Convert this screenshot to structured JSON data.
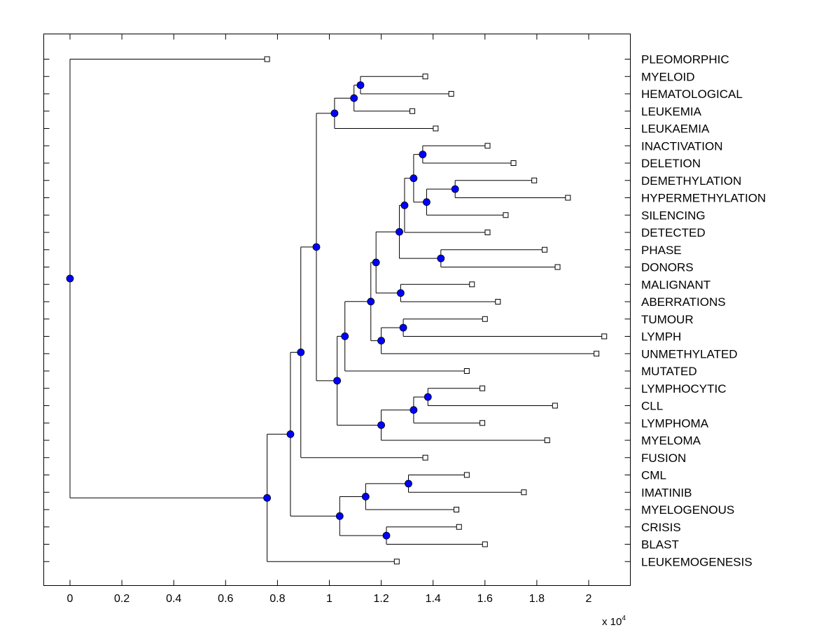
{
  "chart_data": {
    "type": "dendrogram",
    "orientation": "horizontal",
    "xlim": [
      -0.1,
      2.15
    ],
    "xticks": [
      0,
      0.2,
      0.4,
      0.6,
      0.8,
      1,
      1.2,
      1.4,
      1.6,
      1.8,
      2
    ],
    "x_multiplier_base": "x 10",
    "x_multiplier_exponent": "4",
    "colors": {
      "node_fill": "#0000ff",
      "line": "#000000",
      "leaf_fill": "#ffffff"
    },
    "leaves": [
      {
        "label": "PLEOMORPHIC",
        "x": 0.76
      },
      {
        "label": "MYELOID",
        "x": 1.37
      },
      {
        "label": "HEMATOLOGICAL",
        "x": 1.47
      },
      {
        "label": "LEUKEMIA",
        "x": 1.32
      },
      {
        "label": "LEUKAEMIA",
        "x": 1.41
      },
      {
        "label": "INACTIVATION",
        "x": 1.61
      },
      {
        "label": "DELETION",
        "x": 1.71
      },
      {
        "label": "DEMETHYLATION",
        "x": 1.79
      },
      {
        "label": "HYPERMETHYLATION",
        "x": 1.92
      },
      {
        "label": "SILENCING",
        "x": 1.68
      },
      {
        "label": "DETECTED",
        "x": 1.61
      },
      {
        "label": "PHASE",
        "x": 1.83
      },
      {
        "label": "DONORS",
        "x": 1.88
      },
      {
        "label": "MALIGNANT",
        "x": 1.55
      },
      {
        "label": "ABERRATIONS",
        "x": 1.65
      },
      {
        "label": "TUMOUR",
        "x": 1.6
      },
      {
        "label": "LYMPH",
        "x": 2.06
      },
      {
        "label": "UNMETHYLATED",
        "x": 2.03
      },
      {
        "label": "MUTATED",
        "x": 1.53
      },
      {
        "label": "LYMPHOCYTIC",
        "x": 1.59
      },
      {
        "label": "CLL",
        "x": 1.87
      },
      {
        "label": "LYMPHOMA",
        "x": 1.59
      },
      {
        "label": "MYELOMA",
        "x": 1.84
      },
      {
        "label": "FUSION",
        "x": 1.37
      },
      {
        "label": "CML",
        "x": 1.53
      },
      {
        "label": "IMATINIB",
        "x": 1.75
      },
      {
        "label": "MYELOGENOUS",
        "x": 1.49
      },
      {
        "label": "CRISIS",
        "x": 1.5
      },
      {
        "label": "BLAST",
        "x": 1.6
      },
      {
        "label": "LEUKEMOGENESIS",
        "x": 1.26
      }
    ],
    "merges": [
      {
        "id": "n1",
        "x": 1.12,
        "children": [
          "MYELOID",
          "HEMATOLOGICAL"
        ]
      },
      {
        "id": "n2",
        "x": 1.095,
        "children": [
          "n1",
          "LEUKEMIA"
        ]
      },
      {
        "id": "n3",
        "x": 1.02,
        "children": [
          "n2",
          "LEUKAEMIA"
        ]
      },
      {
        "id": "n4",
        "x": 1.36,
        "children": [
          "INACTIVATION",
          "DELETION"
        ]
      },
      {
        "id": "n5",
        "x": 1.485,
        "children": [
          "DEMETHYLATION",
          "HYPERMETHYLATION"
        ]
      },
      {
        "id": "n6",
        "x": 1.375,
        "children": [
          "n5",
          "SILENCING"
        ]
      },
      {
        "id": "n7",
        "x": 1.325,
        "children": [
          "n4",
          "n6"
        ]
      },
      {
        "id": "n8",
        "x": 1.29,
        "children": [
          "n7",
          "DETECTED"
        ]
      },
      {
        "id": "n9",
        "x": 1.43,
        "children": [
          "PHASE",
          "DONORS"
        ]
      },
      {
        "id": "n10",
        "x": 1.27,
        "children": [
          "n8",
          "n9"
        ]
      },
      {
        "id": "n11",
        "x": 1.275,
        "children": [
          "MALIGNANT",
          "ABERRATIONS"
        ]
      },
      {
        "id": "n12",
        "x": 1.18,
        "children": [
          "n10",
          "n11"
        ]
      },
      {
        "id": "n13",
        "x": 1.285,
        "children": [
          "TUMOUR",
          "LYMPH"
        ]
      },
      {
        "id": "n14",
        "x": 1.2,
        "children": [
          "n13",
          "UNMETHYLATED"
        ]
      },
      {
        "id": "n15",
        "x": 1.16,
        "children": [
          "n12",
          "n14"
        ]
      },
      {
        "id": "n16",
        "x": 1.06,
        "children": [
          "n15",
          "MUTATED"
        ]
      },
      {
        "id": "n17",
        "x": 1.38,
        "children": [
          "LYMPHOCYTIC",
          "CLL"
        ]
      },
      {
        "id": "n18",
        "x": 1.325,
        "children": [
          "n17",
          "LYMPHOMA"
        ]
      },
      {
        "id": "n19",
        "x": 1.2,
        "children": [
          "n18",
          "MYELOMA"
        ]
      },
      {
        "id": "n20",
        "x": 1.03,
        "children": [
          "n16",
          "n19"
        ]
      },
      {
        "id": "n21",
        "x": 0.95,
        "children": [
          "n3",
          "n20"
        ]
      },
      {
        "id": "n22",
        "x": 0.89,
        "children": [
          "n21",
          "FUSION"
        ]
      },
      {
        "id": "n23",
        "x": 1.305,
        "children": [
          "CML",
          "IMATINIB"
        ]
      },
      {
        "id": "n24",
        "x": 1.14,
        "children": [
          "n23",
          "MYELOGENOUS"
        ]
      },
      {
        "id": "n25",
        "x": 1.22,
        "children": [
          "CRISIS",
          "BLAST"
        ]
      },
      {
        "id": "n26",
        "x": 1.04,
        "children": [
          "n24",
          "n25"
        ]
      },
      {
        "id": "n27",
        "x": 0.85,
        "children": [
          "n22",
          "n26"
        ]
      },
      {
        "id": "n28",
        "x": 0.76,
        "children": [
          "n27",
          "LEUKEMOGENESIS"
        ]
      },
      {
        "id": "n29",
        "x": 0.0,
        "children": [
          "PLEOMORPHIC",
          "n28"
        ]
      }
    ]
  }
}
